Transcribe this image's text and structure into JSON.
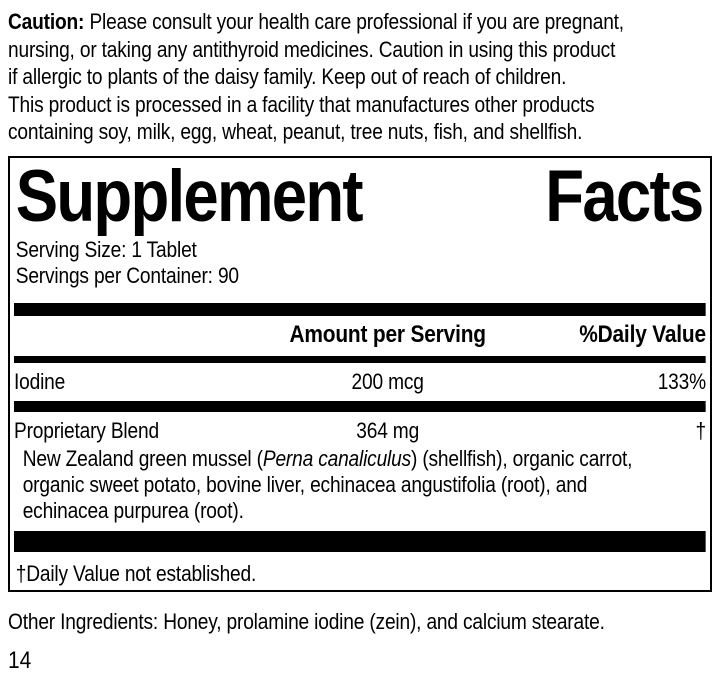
{
  "colors": {
    "ink": "#000000",
    "paper": "#ffffff"
  },
  "caution": {
    "label": "Caution:",
    "lines": [
      "Please consult your health care professional if you are pregnant,",
      "nursing, or taking any antithyroid medicines. Caution in using this product",
      "if allergic to plants of the daisy family. Keep out of reach of children.",
      "This product is processed in a facility that manufactures other products",
      "containing soy, milk, egg, wheat, peanut, tree nuts, fish, and shellfish."
    ]
  },
  "panel": {
    "title_words": [
      "Supplement",
      "Facts"
    ],
    "serving_size": "Serving Size: 1 Tablet",
    "servings_per_container": "Servings per Container: 90",
    "header": {
      "amount": "Amount per Serving",
      "daily_value": "%Daily Value"
    },
    "rows": [
      {
        "name": "Iodine",
        "amount": "200 mcg",
        "daily_value": "133%"
      },
      {
        "name": "Proprietary Blend",
        "amount": "364 mg",
        "daily_value": "†"
      }
    ],
    "blend_description": {
      "line1_pre": "New Zealand green mussel (",
      "line1_italic": "Perna canaliculus",
      "line1_post": ") (shellfish), organic carrot,",
      "line2": "organic sweet potato, bovine liver, echinacea angustifolia (root), and",
      "line3": "echinacea purpurea (root)."
    },
    "footnote": "†Daily Value not established."
  },
  "other_ingredients": "Other Ingredients: Honey, prolamine iodine (zein), and calcium stearate.",
  "page_number": "14"
}
